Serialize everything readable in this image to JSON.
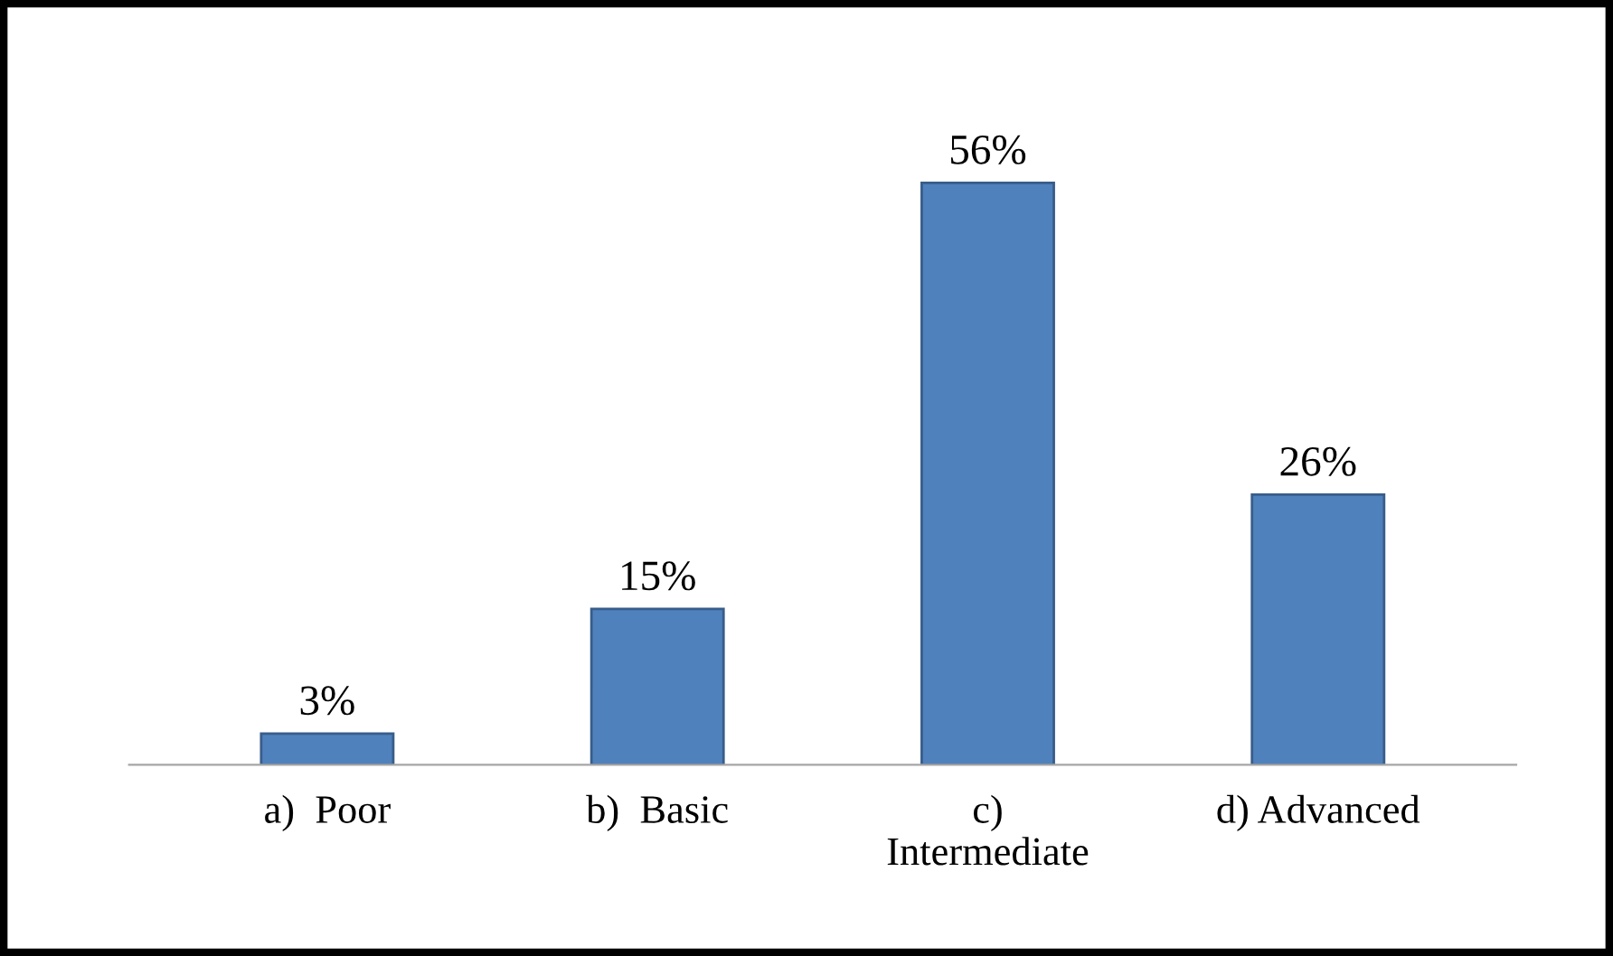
{
  "chart_data": {
    "type": "bar",
    "categories": [
      "a)  Poor",
      "b)  Basic",
      "c)\nIntermediate",
      "d) Advanced"
    ],
    "values": [
      3,
      15,
      56,
      26
    ],
    "value_labels": [
      "3%",
      "15%",
      "56%",
      "26%"
    ],
    "color": "#4f81bd",
    "grid": false,
    "legend": false
  }
}
